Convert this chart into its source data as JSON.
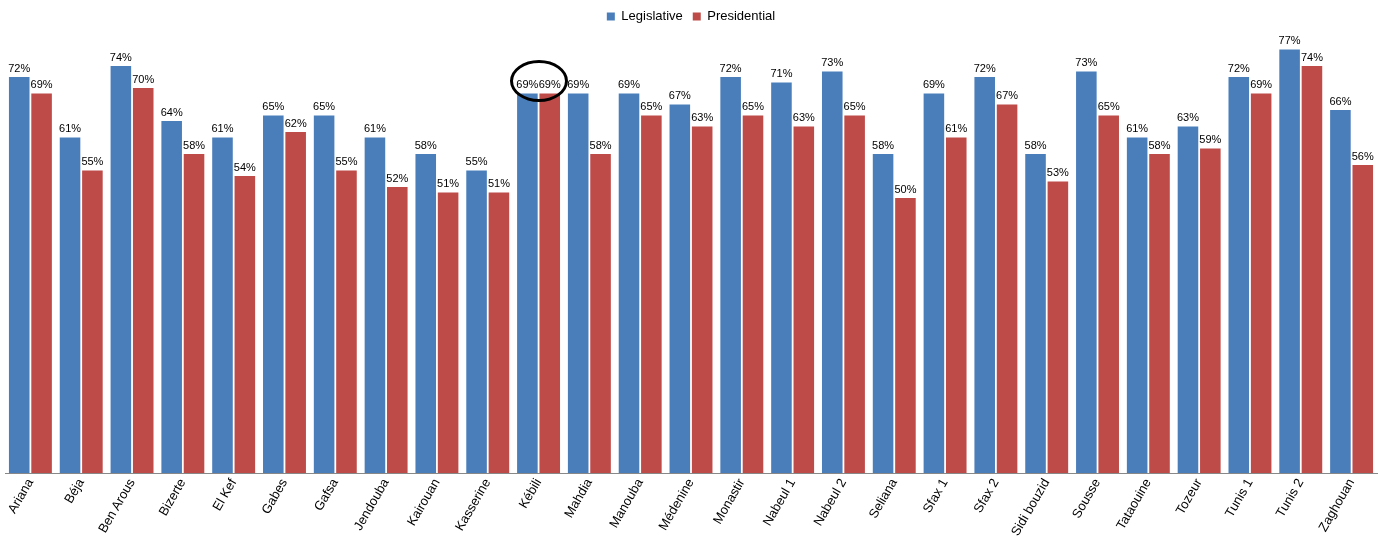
{
  "chart_data": {
    "type": "bar",
    "categories": [
      "Ariana",
      "Béja",
      "Ben Arous",
      "Bizerte",
      "El Kef",
      "Gabes",
      "Gafsa",
      "Jendouba",
      "Kairouan",
      "Kasserine",
      "Kébili",
      "Mahdia",
      "Manouba",
      "Médenine",
      "Monastir",
      "Nabeul 1",
      "Nabeul 2",
      "Seliana",
      "Sfax 1",
      "Sfax 2",
      "Sidi bouzid",
      "Sousse",
      "Tataouine",
      "Tozeur",
      "Tunis 1",
      "Tunis 2",
      "Zaghouan"
    ],
    "series": [
      {
        "name": "Legislative",
        "color": "#4a7ebb",
        "values": [
          72,
          61,
          74,
          64,
          61,
          65,
          65,
          61,
          58,
          55,
          69,
          69,
          69,
          67,
          72,
          71,
          73,
          58,
          69,
          72,
          58,
          73,
          61,
          63,
          72,
          77,
          66
        ],
        "value_labels": [
          "72%",
          "61%",
          "74%",
          "64%",
          "61%",
          "65%",
          "65%",
          "61%",
          "58%",
          "55%",
          "69%",
          "69%",
          "69%",
          "67%",
          "72%",
          "71%",
          "73%",
          "58%",
          "69%",
          "72%",
          "58%",
          "73%",
          "61%",
          "63%",
          "72%",
          "77%",
          "66%"
        ]
      },
      {
        "name": "Presidential",
        "color": "#be4b48",
        "values": [
          69,
          55,
          70,
          58,
          54,
          62,
          55,
          52,
          51,
          51,
          69,
          58,
          65,
          63,
          65,
          63,
          65,
          50,
          61,
          67,
          53,
          65,
          58,
          59,
          69,
          74,
          56
        ],
        "value_labels": [
          "69%",
          "55%",
          "70%",
          "58%",
          "54%",
          "62%",
          "55%",
          "52%",
          "51%",
          "51%",
          "69%",
          "58%",
          "65%",
          "63%",
          "65%",
          "63%",
          "65%",
          "50%",
          "61%",
          "67%",
          "53%",
          "65%",
          "58%",
          "59%",
          "69%",
          "74%",
          "56%"
        ]
      }
    ],
    "legend": "top",
    "grid": false,
    "tick_labels": "x"
  }
}
